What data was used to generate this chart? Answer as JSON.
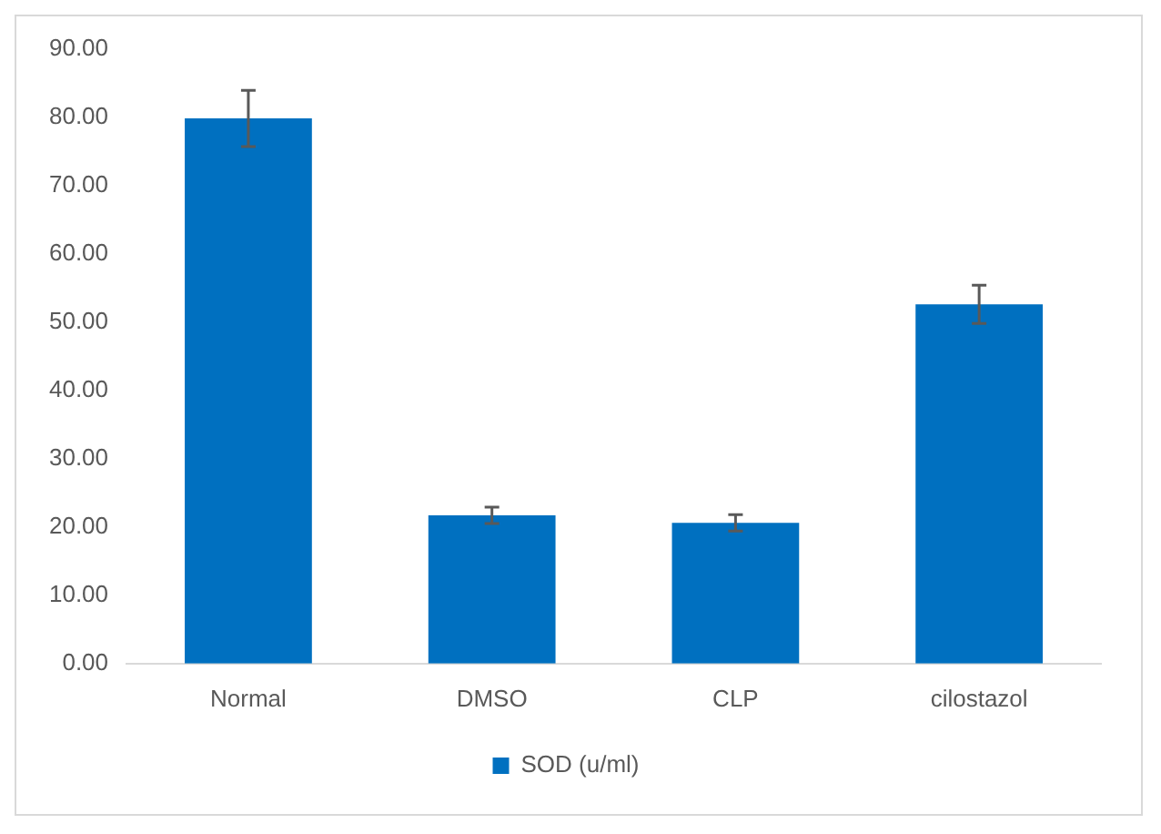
{
  "chart_data": {
    "type": "bar",
    "categories": [
      "Normal",
      "DMSO",
      "CLP",
      "cilostazol"
    ],
    "series": [
      {
        "name": "SOD (u/ml)",
        "color": "#0070c0",
        "values": [
          79.8,
          21.7,
          20.6,
          52.6
        ],
        "errors": [
          4.1,
          1.2,
          1.2,
          2.8
        ]
      }
    ],
    "ylim": [
      0,
      90
    ],
    "yticks": [
      {
        "value": 0,
        "label": "0.00"
      },
      {
        "value": 10,
        "label": "10.00"
      },
      {
        "value": 20,
        "label": "20.00"
      },
      {
        "value": 30,
        "label": "30.00"
      },
      {
        "value": 40,
        "label": "40.00"
      },
      {
        "value": 50,
        "label": "50.00"
      },
      {
        "value": 60,
        "label": "60.00"
      },
      {
        "value": 70,
        "label": "70.00"
      },
      {
        "value": 80,
        "label": "80.00"
      },
      {
        "value": 90,
        "label": "90.00"
      }
    ],
    "grid": false,
    "legend": "bottom"
  }
}
